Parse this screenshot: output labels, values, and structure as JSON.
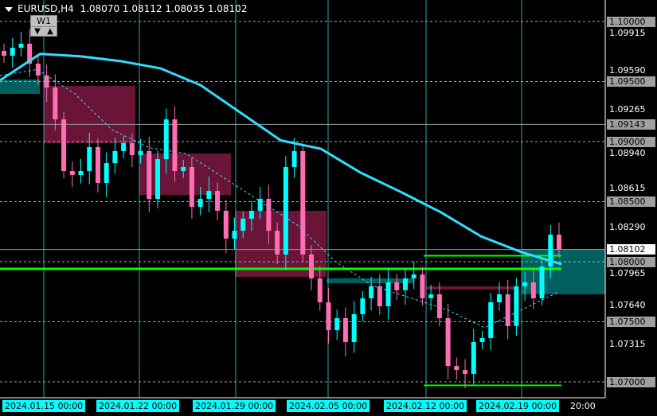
{
  "header": {
    "symbol": "EURUSD,H4",
    "open": "1.08070",
    "high": "1.08112",
    "low": "1.08035",
    "close": "1.08102"
  },
  "period_button": {
    "label": "W1",
    "down": "▼",
    "up": "▲"
  },
  "price_axis": {
    "ticks": [
      "1.09915",
      "1.09590",
      "1.09265",
      "1.08940",
      "1.08615",
      "1.08290",
      "1.07965",
      "1.07640",
      "1.07315"
    ],
    "level_labels": [
      "1.10000",
      "1.09500",
      "1.09143",
      "1.09000",
      "1.08500",
      "1.08000",
      "1.07500",
      "1.07000"
    ],
    "current_price": "1.08102"
  },
  "time_axis": {
    "labels": [
      "2024.01.15 00:00",
      "2024.01.22 00:00",
      "2024.01.29 00:00",
      "2024.02.05 00:00",
      "2024.02.12 00:00",
      "2024.02.19 00:00"
    ],
    "last_label": "20:00"
  },
  "colors": {
    "bull": "#00ffff",
    "bear": "#ff6eb4",
    "ma": "#33ddff",
    "level_green": "#00ff00",
    "zone_teal": "#006060",
    "zone_maroon": "#6a1538"
  },
  "chart_data": {
    "type": "candlestick",
    "ylim": [
      1.0685,
      1.1017
    ],
    "closes": [
      1.09715,
      1.09781,
      1.09815,
      1.09649,
      1.0955,
      1.0945,
      1.09185,
      1.08755,
      1.08722,
      1.08755,
      1.08954,
      1.08656,
      1.08821,
      1.08921,
      1.08987,
      1.08887,
      1.08921,
      1.08523,
      1.08854,
      1.09185,
      1.08755,
      1.08788,
      1.08457,
      1.08523,
      1.08589,
      1.08424,
      1.08192,
      1.08258,
      1.08358,
      1.08424,
      1.08523,
      1.08258,
      1.0806,
      1.08788,
      1.08921,
      1.0806,
      1.07861,
      1.07662,
      1.0743,
      1.0753,
      1.07331,
      1.07563,
      1.07695,
      1.07795,
      1.07629,
      1.07828,
      1.07762,
      1.07861,
      1.07894,
      1.07695,
      1.07728,
      1.0753,
      1.07132,
      1.07099,
      1.07066,
      1.07331,
      1.07364,
      1.07662,
      1.07728,
      1.07464,
      1.07795,
      1.07828,
      1.07695,
      1.0796,
      1.08225,
      1.08102
    ],
    "ma_slow": [
      1.0951,
      1.0973,
      1.0971,
      1.0967,
      1.0961,
      1.0947,
      1.0924,
      1.0901,
      1.0894,
      1.0874,
      1.0858,
      1.0841,
      1.0821,
      1.0808,
      1.0798
    ],
    "ma_fast": [
      1.0955,
      1.096,
      1.094,
      1.091,
      1.0895,
      1.089,
      1.087,
      1.085,
      1.083,
      1.08,
      1.078,
      1.077,
      1.076,
      1.0745,
      1.076,
      1.0775
    ],
    "levels_dashed": [
      1.1,
      1.095,
      1.09,
      1.085,
      1.08,
      1.075,
      1.07
    ],
    "levels_solid_grey": [
      1.09143,
      1.08102
    ],
    "green_level_full": 1.0794,
    "green_level_segments": [
      1.0805,
      1.0697
    ]
  }
}
